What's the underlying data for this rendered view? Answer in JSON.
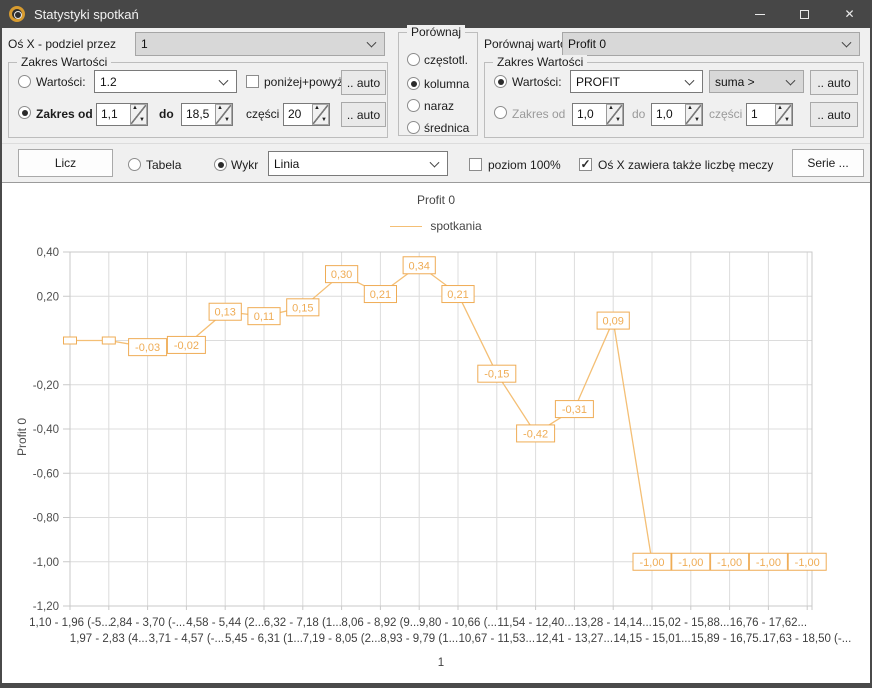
{
  "titlebar": {
    "title": "Statystyki spotkań"
  },
  "toolbar": {
    "axis_divide_label": "Oś X - podziel przez",
    "axis_divide_value": "1",
    "compare_values_label": "Porównaj wartości",
    "compare_values_value": "Profit 0",
    "compare_group": {
      "title": "Porównaj",
      "options": [
        "częstotl.",
        "kolumna",
        "naraz",
        "średnica"
      ],
      "selected": "kolumna"
    },
    "left_range": {
      "title": "Zakres Wartości",
      "values_label": "Wartości:",
      "values_value": "1.2",
      "below_above_label": "poniżej+powyż",
      "auto_label": ".. auto",
      "range_label": "Zakres od",
      "range_from": "1,1",
      "to_label": "do",
      "range_to": "18,5",
      "parts_label": "części",
      "parts_value": "20"
    },
    "right_range": {
      "title": "Zakres Wartości",
      "values_label": "Wartości:",
      "values_value": "PROFIT",
      "agg_value": "suma >",
      "auto_label": ".. auto",
      "range_label": "Zakres od",
      "range_from": "1,0",
      "to_label": "do",
      "range_to": "1,0",
      "parts_label": "części",
      "parts_value": "1"
    }
  },
  "actionbar": {
    "licz_label": "Licz",
    "tabela_label": "Tabela",
    "wykr_label": "Wykr",
    "chart_type_value": "Linia",
    "poziom_label": "poziom 100%",
    "osx_meczy_label": "Oś X zawiera także liczbę meczy",
    "serie_label": "Serie ..."
  },
  "chart_data": {
    "type": "line",
    "title": "Profit 0",
    "ylabel": "Profit 0",
    "xlabel": "1",
    "legend": [
      {
        "name": "spotkania",
        "color": "#F4BF75"
      }
    ],
    "ylim": [
      -1.2,
      0.4
    ],
    "grid": true,
    "yticks": [
      {
        "value": 0.4,
        "label": "0,40"
      },
      {
        "value": 0.2,
        "label": "0,20"
      },
      {
        "value": 0,
        "label": ""
      },
      {
        "value": -0.2,
        "label": "-0,20"
      },
      {
        "value": -0.4,
        "label": "-0,40"
      },
      {
        "value": -0.6,
        "label": "-0,60"
      },
      {
        "value": -0.8,
        "label": "-0,80"
      },
      {
        "value": -1,
        "label": "-1,00"
      },
      {
        "value": -1.2,
        "label": "-1,20"
      }
    ],
    "series": [
      {
        "name": "spotkania",
        "values": [
          0,
          0,
          -0.03,
          -0.02,
          0.13,
          0.11,
          0.15,
          0.3,
          0.21,
          0.34,
          0.21,
          -0.15,
          -0.42,
          -0.31,
          0.09,
          -1.0,
          -1.0,
          -1.0,
          -1.0,
          -1.0
        ],
        "point_labels": [
          "",
          "",
          "-0,03",
          "-0,02",
          "0,13",
          "0,11",
          "0,15",
          "0,30",
          "0,21",
          "0,34",
          "0,21",
          "-0,15",
          "-0,42",
          "-0,31",
          "0,09",
          "-1,00",
          "-1,00",
          "-1,00",
          "-1,00",
          "-1,00"
        ]
      }
    ],
    "x_bin_labels_row1": [
      "1,10 - 1,96 (-5...",
      "2,84 - 3,70 (-...",
      "4,58 - 5,44 (2...",
      "6,32 - 7,18 (1...",
      "8,06 - 8,92 (9...",
      "9,80 - 10,66 (...",
      "11,54 - 12,40...",
      "13,28 - 14,14...",
      "15,02 - 15,88...",
      "16,76 - 17,62..."
    ],
    "x_bin_labels_row2": [
      "1,97 - 2,83 (4...",
      "3,71 - 4,57 (-...",
      "5,45 - 6,31 (1...",
      "7,19 - 8,05 (2...",
      "8,93 - 9,79 (1...",
      "10,67 - 11,53...",
      "12,41 - 13,27...",
      "14,15 - 15,01...",
      "15,89 - 16,75...",
      "17,63 - 18,50 (-..."
    ],
    "colors": {
      "line": "#F4BF75",
      "point_label": "#EFAC55",
      "grid": "#DCDCDC",
      "frame": "#C9C9C9",
      "axis_text": "#4E4E4E"
    }
  }
}
